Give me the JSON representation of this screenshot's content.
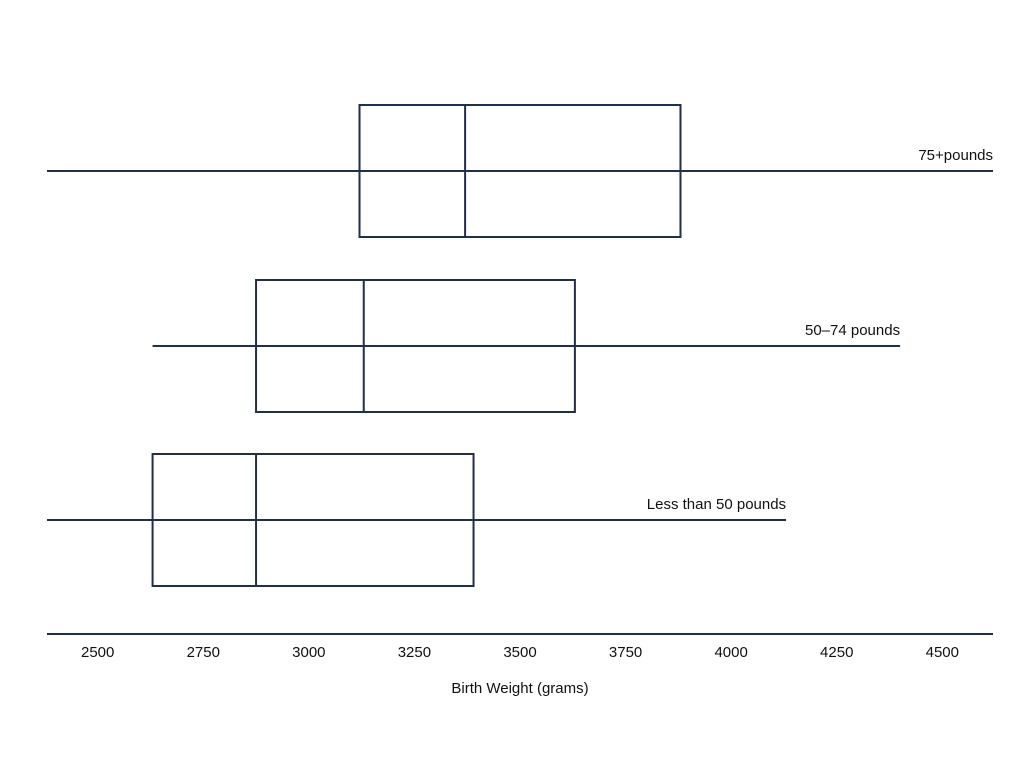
{
  "chart_data": {
    "type": "boxplot",
    "title": "",
    "xlabel": "Birth Weight (grams)",
    "ylabel": "",
    "xlim": [
      2380,
      4620
    ],
    "xticks": [
      2500,
      2750,
      3000,
      3250,
      3500,
      3750,
      4000,
      4250,
      4500
    ],
    "grid": false,
    "legend": "none",
    "color": "#1f2f4d",
    "groups": [
      {
        "label": "75+pounds",
        "whisker_low": 2380,
        "q1": 3120,
        "median": 3370,
        "q3": 3880,
        "whisker_high": 4620
      },
      {
        "label": "50–74 pounds",
        "whisker_low": 2630,
        "q1": 2875,
        "median": 3130,
        "q3": 3630,
        "whisker_high": 4400
      },
      {
        "label": "Less than 50 pounds",
        "whisker_low": 2380,
        "q1": 2630,
        "median": 2875,
        "q3": 3390,
        "whisker_high": 4130
      }
    ]
  }
}
